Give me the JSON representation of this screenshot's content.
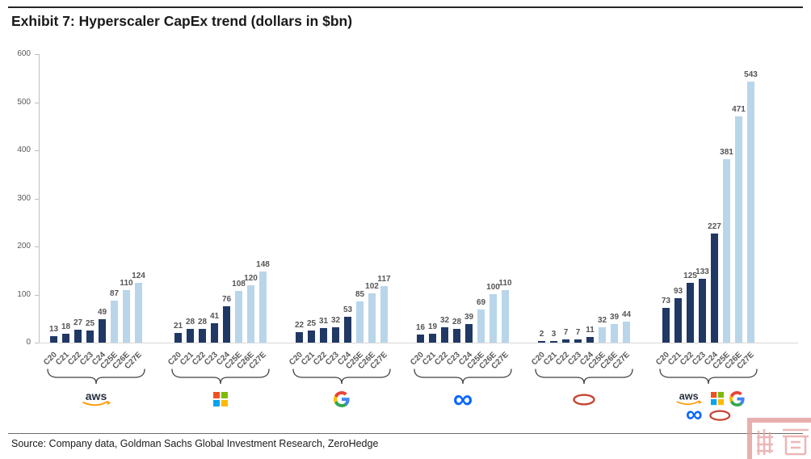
{
  "title": "Exhibit 7: Hyperscaler CapEx trend (dollars in $bn)",
  "source": "Source: Company data, Goldman Sachs Global Investment Research, ZeroHedge",
  "watermark_icon": "red-seal-stamp",
  "chart_data": {
    "type": "bar",
    "title": "Exhibit 7: Hyperscaler CapEx trend (dollars in $bn)",
    "categories": [
      "C20",
      "C21",
      "C22",
      "C23",
      "C24",
      "C25E",
      "C26E",
      "C27E"
    ],
    "estimate_categories": [
      "C25E",
      "C26E",
      "C27E"
    ],
    "series": [
      {
        "name": "AWS",
        "logo": "aws",
        "values": [
          13,
          18,
          27,
          25,
          49,
          87,
          110,
          124
        ]
      },
      {
        "name": "Microsoft",
        "logo": "microsoft",
        "values": [
          21,
          28,
          28,
          41,
          76,
          108,
          120,
          148
        ]
      },
      {
        "name": "Google",
        "logo": "google",
        "values": [
          22,
          25,
          31,
          32,
          53,
          85,
          102,
          117
        ]
      },
      {
        "name": "Meta",
        "logo": "meta",
        "values": [
          16,
          19,
          32,
          28,
          39,
          69,
          100,
          110
        ]
      },
      {
        "name": "Oracle",
        "logo": "oracle",
        "values": [
          2,
          3,
          7,
          7,
          11,
          32,
          39,
          44
        ]
      },
      {
        "name": "Total",
        "logo": "all",
        "values": [
          73,
          93,
          125,
          133,
          227,
          381,
          471,
          543
        ]
      }
    ],
    "ylim": [
      0,
      600
    ],
    "yticks": [
      0,
      100,
      200,
      300,
      400,
      500,
      600
    ],
    "grid": false,
    "legend_position": "none",
    "colors": {
      "actual": "#203864",
      "estimate": "#b9d5ea",
      "value_label": "#555555"
    }
  }
}
